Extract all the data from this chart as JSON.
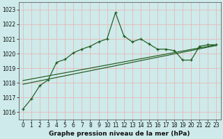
{
  "line1_x": [
    0,
    1,
    2,
    3,
    4,
    5,
    6,
    7,
    8,
    9,
    10,
    11,
    12,
    13,
    14,
    15,
    16,
    17,
    18,
    19,
    20,
    21,
    22,
    23
  ],
  "line1_y": [
    1016.2,
    1016.9,
    1017.8,
    1018.2,
    1019.4,
    1019.6,
    1020.05,
    1020.3,
    1020.5,
    1020.8,
    1021.0,
    1022.8,
    1021.2,
    1020.8,
    1021.0,
    1020.65,
    1020.3,
    1020.3,
    1020.2,
    1019.55,
    1019.55,
    1020.5,
    1020.6,
    1020.6
  ],
  "line2_x": [
    0,
    23
  ],
  "line2_y": [
    1017.9,
    1020.55
  ],
  "line3_x": [
    0,
    23
  ],
  "line3_y": [
    1018.15,
    1020.6
  ],
  "bg_color": "#ceeaea",
  "grid_color": "#e8b8b8",
  "line_color": "#1f5c1f",
  "xlabel": "Graphe pression niveau de la mer (hPa)",
  "xlim": [
    -0.5,
    23.5
  ],
  "ylim": [
    1015.5,
    1023.5
  ],
  "yticks": [
    1016,
    1017,
    1018,
    1019,
    1020,
    1021,
    1022,
    1023
  ],
  "xticks": [
    0,
    1,
    2,
    3,
    4,
    5,
    6,
    7,
    8,
    9,
    10,
    11,
    12,
    13,
    14,
    15,
    16,
    17,
    18,
    19,
    20,
    21,
    22,
    23
  ],
  "xlabel_fontsize": 6.5,
  "tick_labelsize": 5.5
}
